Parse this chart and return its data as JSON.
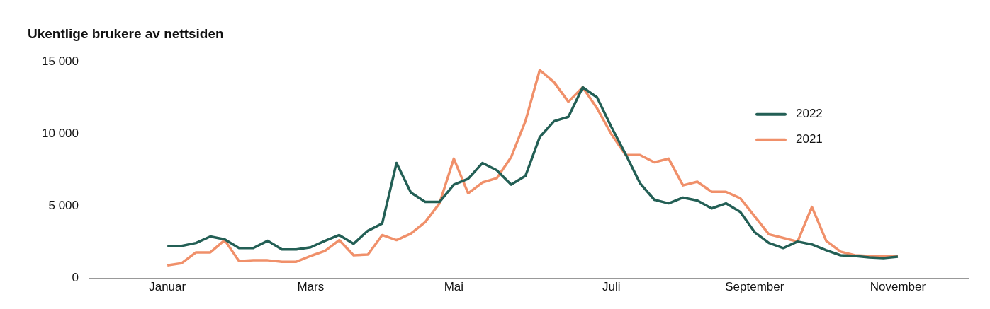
{
  "chart_data": {
    "type": "line",
    "title": "Ukentlige brukere av nettsiden",
    "categories": [
      "Januar",
      null,
      null,
      null,
      null,
      null,
      null,
      null,
      null,
      null,
      "Mars",
      null,
      null,
      null,
      null,
      null,
      null,
      null,
      null,
      null,
      "Mai",
      null,
      null,
      null,
      null,
      null,
      null,
      null,
      null,
      null,
      null,
      "Juli",
      null,
      null,
      null,
      null,
      null,
      null,
      null,
      null,
      null,
      "September",
      null,
      null,
      null,
      null,
      null,
      null,
      null,
      null,
      null,
      "November"
    ],
    "series": [
      {
        "name": "2022",
        "color": "#235f55",
        "values": [
          2250,
          2250,
          2450,
          2900,
          2700,
          2100,
          2100,
          2600,
          2000,
          2000,
          2150,
          2600,
          3000,
          2400,
          3300,
          3800,
          8000,
          5950,
          5300,
          5300,
          6500,
          6900,
          8000,
          7500,
          6500,
          7100,
          9800,
          10900,
          11200,
          13250,
          12550,
          10500,
          8600,
          6600,
          5450,
          5200,
          5600,
          5400,
          4850,
          5200,
          4600,
          3200,
          2450,
          2100,
          2550,
          2350,
          1950,
          1600,
          1550,
          1450,
          1400,
          1500
        ]
      },
      {
        "name": "2021",
        "color": "#f0906a",
        "values": [
          900,
          1050,
          1800,
          1800,
          2650,
          1200,
          1250,
          1250,
          1150,
          1150,
          1550,
          1900,
          2650,
          1600,
          1650,
          3000,
          2650,
          3100,
          3900,
          5200,
          8300,
          5900,
          6650,
          6950,
          8400,
          10900,
          14450,
          13600,
          12250,
          13250,
          11800,
          10000,
          8550,
          8550,
          8050,
          8300,
          6450,
          6700,
          6000,
          6000,
          5550,
          4300,
          3050,
          2800,
          2550,
          4950,
          2600,
          1850,
          1600,
          1550,
          1550,
          1550
        ]
      }
    ],
    "ylim": [
      0,
      15000
    ],
    "yticks": [
      {
        "value": 0,
        "label": "0"
      },
      {
        "value": 5000,
        "label": "5 000"
      },
      {
        "value": 10000,
        "label": "10 000"
      },
      {
        "value": 15000,
        "label": "15 000"
      }
    ],
    "grid": "y",
    "legend": "top right"
  }
}
